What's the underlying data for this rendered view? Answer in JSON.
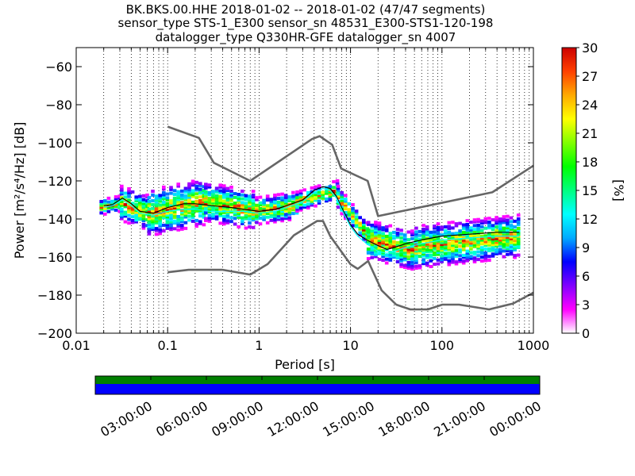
{
  "chart_data": {
    "type": "heatmap",
    "title_lines": [
      "BK.BKS.00.HHE   2018-01-02 -- 2018-01-02  (47/47 segments)",
      "sensor_type STS-1_E300 sensor_sn 48531_E300-STS1-120-198",
      "datalogger_type Q330HR-GFE datalogger_sn 4007"
    ],
    "xlabel": "Period [s]",
    "ylabel": "Power [m²/s⁴/Hz] [dB]",
    "x_scale": "log",
    "xlim": [
      0.01,
      1000
    ],
    "ylim": [
      -200,
      -50
    ],
    "x_ticks": [
      0.01,
      0.1,
      1,
      10,
      100,
      1000
    ],
    "x_tick_labels": [
      "0.01",
      "0.1",
      "1",
      "10",
      "100",
      "1000"
    ],
    "y_ticks": [
      -200,
      -180,
      -160,
      -140,
      -120,
      -100,
      -80,
      -60
    ],
    "y_tick_labels": [
      "−200",
      "−180",
      "−160",
      "−140",
      "−120",
      "−100",
      "−80",
      "−60"
    ],
    "grid": "dotted vertical at log minor ticks",
    "colorbar": {
      "label": "[%]",
      "range": [
        0,
        30
      ],
      "ticks": [
        0,
        3,
        6,
        9,
        12,
        15,
        18,
        21,
        24,
        27,
        30
      ],
      "tick_labels": [
        "0",
        "3",
        "6",
        "9",
        "12",
        "15",
        "18",
        "21",
        "24",
        "27",
        "30"
      ],
      "colormap": [
        "#ffffff",
        "#ff00ff",
        "#8000ff",
        "#0000ff",
        "#00aaff",
        "#00ffff",
        "#00ff80",
        "#00ff00",
        "#80ff00",
        "#ffff00",
        "#ffaa00",
        "#ff4000",
        "#cc0000"
      ]
    },
    "series": [
      {
        "role": "high noise model",
        "color": "#666666",
        "x": [
          0.1,
          0.22,
          0.32,
          0.8,
          3.8,
          4.6,
          6.3,
          7.9,
          15.4,
          20,
          354.8,
          1000
        ],
        "y": [
          -91.5,
          -97.4,
          -110.5,
          -120,
          -98,
          -96.5,
          -101,
          -113.5,
          -120,
          -138.5,
          -126,
          -112
        ]
      },
      {
        "role": "low noise model",
        "color": "#666666",
        "x": [
          0.1,
          0.17,
          0.4,
          0.8,
          1.24,
          2.4,
          4.3,
          5,
          6,
          10,
          12,
          15.6,
          21.9,
          31.6,
          45,
          70,
          101,
          154,
          328,
          600,
          1000
        ],
        "y": [
          -168,
          -166.7,
          -166.7,
          -169.2,
          -163.7,
          -148.6,
          -141.1,
          -141.1,
          -149,
          -163.8,
          -166.2,
          -162.1,
          -177.5,
          -185,
          -187.5,
          -187.5,
          -185,
          -185,
          -187.5,
          -184.4,
          -178.7
        ]
      },
      {
        "role": "mean",
        "color": "#000000",
        "x": [
          0.02,
          0.025,
          0.032,
          0.04,
          0.05,
          0.07,
          0.1,
          0.15,
          0.2,
          0.3,
          0.5,
          0.7,
          1,
          1.5,
          2,
          3,
          4,
          5,
          6,
          7,
          8,
          10,
          12,
          15,
          20,
          25,
          30,
          40,
          60,
          100,
          200,
          400,
          700
        ],
        "y": [
          -133,
          -132.5,
          -129,
          -132,
          -136,
          -137,
          -134,
          -132,
          -132,
          -133,
          -134,
          -135,
          -136,
          -135,
          -133,
          -130,
          -125,
          -123,
          -124,
          -128,
          -134,
          -143,
          -148,
          -151,
          -154,
          -156,
          -155,
          -153,
          -151,
          -149,
          -148,
          -147,
          -147
        ]
      },
      {
        "role": "mode",
        "color": "#00ffff",
        "x": [
          0.02,
          0.025,
          0.032,
          0.04,
          0.05,
          0.07,
          0.1,
          0.15,
          0.2,
          0.3,
          0.5,
          0.7,
          1,
          1.5,
          2,
          3,
          4,
          5,
          6,
          7,
          8,
          10,
          12,
          15,
          20,
          25,
          30,
          40,
          60,
          100,
          200,
          400,
          700
        ],
        "y": [
          -134,
          -133,
          -130,
          -133,
          -137,
          -138,
          -136,
          -135,
          -135,
          -136,
          -136,
          -136,
          -137,
          -136,
          -134,
          -131,
          -126,
          -124,
          -125,
          -129,
          -135,
          -144,
          -149,
          -153,
          -157,
          -158,
          -157,
          -155,
          -153,
          -151,
          -150,
          -149,
          -149
        ]
      }
    ],
    "heatmap_bands": [
      {
        "x": [
          0.018,
          0.03
        ],
        "y_center": [
          -133,
          -131
        ],
        "spread": 4
      },
      {
        "x": [
          0.03,
          0.06
        ],
        "y_center": [
          -131,
          -136
        ],
        "spread": 9
      },
      {
        "x": [
          0.06,
          0.25
        ],
        "y_center": [
          -136,
          -130
        ],
        "spread": 12
      },
      {
        "x": [
          0.25,
          0.9
        ],
        "y_center": [
          -130,
          -135
        ],
        "spread": 10
      },
      {
        "x": [
          0.9,
          2.5
        ],
        "y_center": [
          -135,
          -132
        ],
        "spread": 7
      },
      {
        "x": [
          2.5,
          7
        ],
        "y_center": [
          -130,
          -124
        ],
        "spread": 5
      },
      {
        "x": [
          7,
          15
        ],
        "y_center": [
          -128,
          -148
        ],
        "spread": 6
      },
      {
        "x": [
          15,
          50
        ],
        "y_center": [
          -150,
          -156
        ],
        "spread": 10
      },
      {
        "x": [
          50,
          700
        ],
        "y_center": [
          -154,
          -148
        ],
        "spread": 11
      }
    ]
  },
  "timeline": {
    "labels": [
      "03:00:00",
      "06:00:00",
      "09:00:00",
      "12:00:00",
      "15:00:00",
      "18:00:00",
      "21:00:00",
      "00:00:00"
    ],
    "top_color": "#007f00",
    "bottom_color": "#0000ff"
  }
}
